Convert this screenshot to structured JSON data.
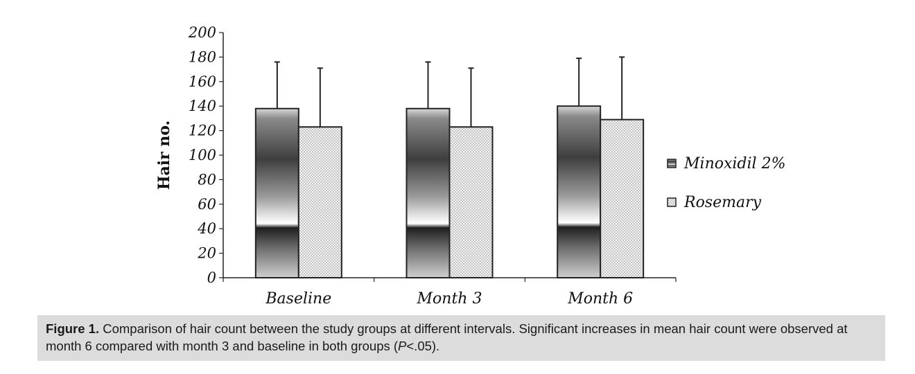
{
  "chart_data": {
    "type": "bar",
    "ylabel": "Hair no.",
    "xlabel": "",
    "ylim": [
      0,
      200
    ],
    "yticks": [
      0,
      20,
      40,
      60,
      80,
      100,
      120,
      140,
      160,
      180,
      200
    ],
    "categories": [
      "Baseline",
      "Month 3",
      "Month 6"
    ],
    "series": [
      {
        "name": "Minoxidil 2%",
        "values": [
          138,
          138,
          140
        ],
        "error": [
          38,
          38,
          39
        ]
      },
      {
        "name": "Rosemary",
        "values": [
          123,
          123,
          129
        ],
        "error": [
          48,
          48,
          51
        ]
      }
    ],
    "error_bars": "upper only",
    "grid": false,
    "legend": "right"
  },
  "caption": {
    "label": "Figure 1.",
    "text": " Comparison of hair count between the study groups at different intervals. Significant increases in mean hair count were observed at month 6 compared with month 3 and baseline in both groups (",
    "p_symbol": "P",
    "p_value": "<.05)."
  }
}
